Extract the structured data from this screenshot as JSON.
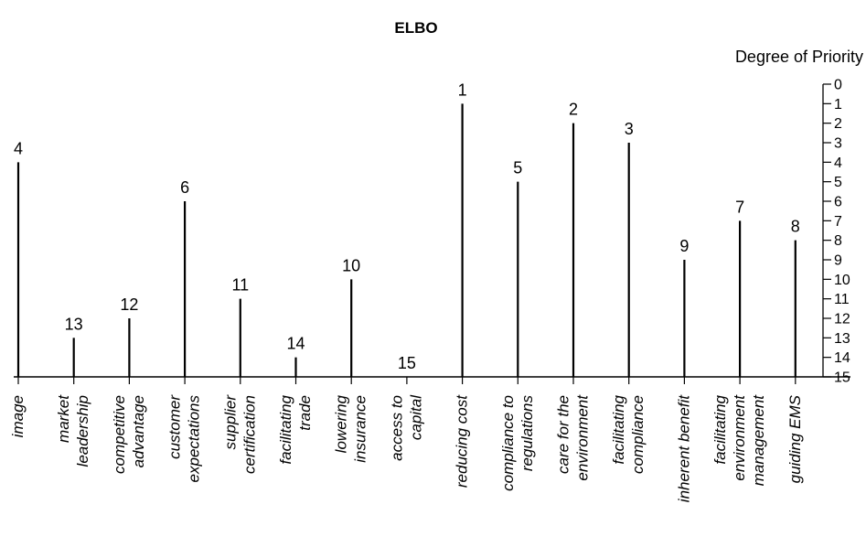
{
  "chart_data": {
    "type": "bar",
    "title": "ELBO",
    "xlabel": "",
    "ylabel": "Degree of Priority",
    "ylim": [
      0,
      15
    ],
    "y_inverted": true,
    "yticks": [
      0,
      1,
      2,
      3,
      4,
      5,
      6,
      7,
      8,
      9,
      10,
      11,
      12,
      13,
      14,
      15
    ],
    "grid": false,
    "categories": [
      [
        "image"
      ],
      [
        "market",
        "leadership"
      ],
      [
        "competitive",
        "advantage"
      ],
      [
        "customer",
        "expectations"
      ],
      [
        "supplier",
        "certification"
      ],
      [
        "facilitating",
        "trade"
      ],
      [
        "lowering",
        "insurance"
      ],
      [
        "access to",
        "capital"
      ],
      [
        "reducing cost"
      ],
      [
        "compliance to",
        "regulations"
      ],
      [
        "care for the",
        "environment"
      ],
      [
        "facilitating",
        "compliance"
      ],
      [
        "inherent benefit"
      ],
      [
        "facilitating",
        "environment",
        "management"
      ],
      [
        "guiding EMS"
      ]
    ],
    "values": [
      4,
      13,
      12,
      6,
      11,
      14,
      10,
      15,
      1,
      5,
      2,
      3,
      9,
      7,
      8
    ]
  }
}
